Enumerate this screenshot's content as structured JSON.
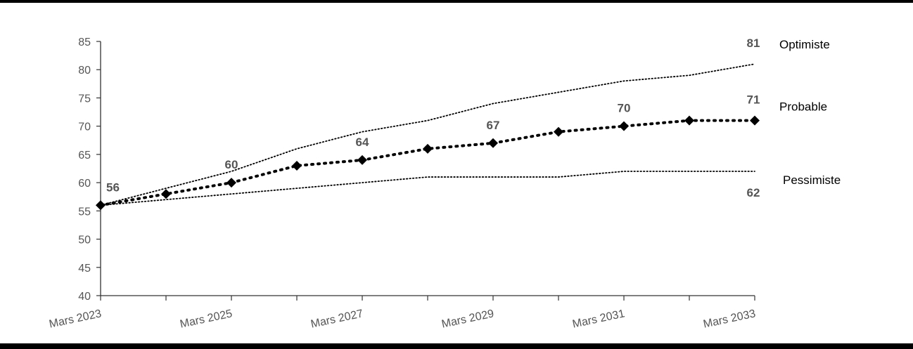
{
  "chart_data": {
    "type": "line",
    "categories": [
      "Mars 2023",
      "",
      "Mars 2025",
      "",
      "Mars 2027",
      "",
      "Mars 2029",
      "",
      "Mars 2031",
      "",
      "Mars 2033"
    ],
    "ylim": [
      40,
      85
    ],
    "yticks": [
      40,
      45,
      50,
      55,
      60,
      65,
      70,
      75,
      80,
      85
    ],
    "series": [
      {
        "name": "Optimiste",
        "values": [
          56,
          59,
          62,
          66,
          69,
          71,
          74,
          76,
          78,
          79,
          81
        ],
        "style": "dotted-thin",
        "color": "#000000",
        "end_label": "81",
        "end_label_bold": false
      },
      {
        "name": "Probable",
        "values": [
          56,
          58,
          60,
          63,
          64,
          66,
          67,
          69,
          70,
          71,
          71
        ],
        "style": "dotted-thick-markers",
        "color": "#000000",
        "end_label": "71",
        "end_label_bold": false
      },
      {
        "name": "Pessimiste",
        "values": [
          56,
          57,
          58,
          59,
          60,
          61,
          61,
          61,
          62,
          62,
          62
        ],
        "style": "dotted-thin",
        "color": "#000000",
        "end_label": "62",
        "end_label_bold": true
      }
    ],
    "data_labels": [
      {
        "index": 0,
        "text": "56"
      },
      {
        "index": 2,
        "text": "60"
      },
      {
        "index": 4,
        "text": "64"
      },
      {
        "index": 6,
        "text": "67"
      },
      {
        "index": 8,
        "text": "70"
      }
    ],
    "title": "",
    "xlabel": "",
    "ylabel": "",
    "grid": false
  }
}
